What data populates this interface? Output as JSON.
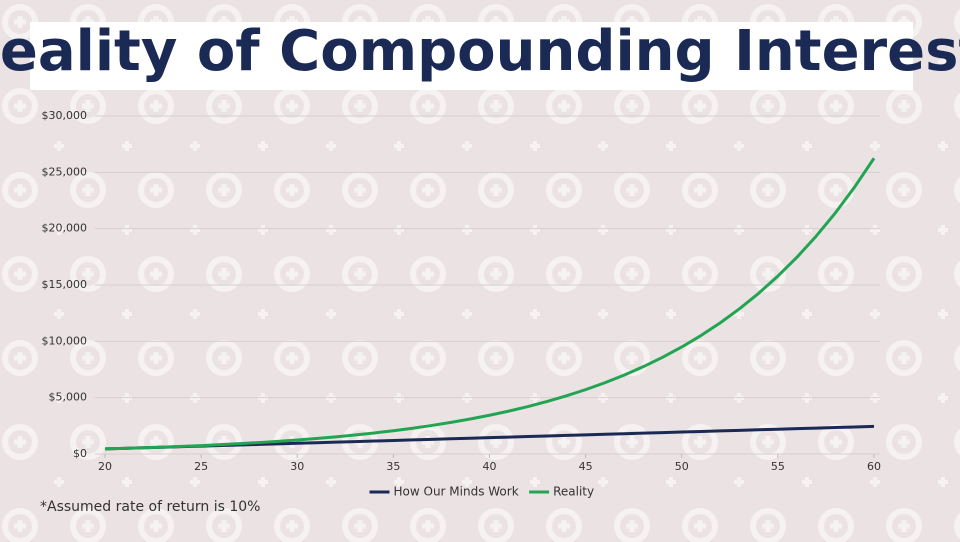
{
  "chart_data": {
    "type": "line",
    "title": "Reality of Compounding Interest",
    "note": "*Assumed rate of return is 10%",
    "x": [
      20,
      21,
      22,
      23,
      24,
      25,
      26,
      27,
      28,
      29,
      30,
      31,
      32,
      33,
      34,
      35,
      36,
      37,
      38,
      39,
      40,
      41,
      42,
      43,
      44,
      45,
      46,
      47,
      48,
      49,
      50,
      51,
      52,
      53,
      54,
      55,
      56,
      57,
      58,
      59,
      60
    ],
    "series": [
      {
        "name": "How Our Minds Work",
        "color": "#1b2a55",
        "values": [
          450,
          500,
          550,
          600,
          650,
          700,
          750,
          800,
          850,
          900,
          950,
          1000,
          1050,
          1100,
          1150,
          1200,
          1250,
          1300,
          1350,
          1400,
          1450,
          1500,
          1550,
          1600,
          1650,
          1700,
          1750,
          1800,
          1850,
          1900,
          1950,
          2000,
          2050,
          2100,
          2150,
          2200,
          2250,
          2300,
          2350,
          2400,
          2450
        ]
      },
      {
        "name": "Reality",
        "color": "#22a453",
        "values": [
          450,
          498,
          551,
          610,
          676,
          748,
          828,
          917,
          1015,
          1123,
          1244,
          1377,
          1524,
          1687,
          1868,
          2068,
          2289,
          2534,
          2805,
          3105,
          3437,
          3805,
          4212,
          4663,
          5162,
          5714,
          6325,
          7002,
          7751,
          8580,
          9499,
          10515,
          11640,
          12886,
          14264,
          15791,
          17480,
          19351,
          21422,
          23714,
          26251
        ]
      }
    ],
    "xlim": [
      20,
      60
    ],
    "xticks": [
      20,
      25,
      30,
      35,
      40,
      45,
      50,
      55,
      60
    ],
    "ylim": [
      0,
      30000
    ],
    "yticks": [
      {
        "value": 0,
        "label": "$0"
      },
      {
        "value": 5000,
        "label": "$5,000"
      },
      {
        "value": 10000,
        "label": "$10,000"
      },
      {
        "value": 15000,
        "label": "$15,000"
      },
      {
        "value": 20000,
        "label": "$20,000"
      },
      {
        "value": 25000,
        "label": "$25,000"
      },
      {
        "value": 30000,
        "label": "$30,000"
      }
    ],
    "grid": true,
    "legend": "bottom"
  }
}
